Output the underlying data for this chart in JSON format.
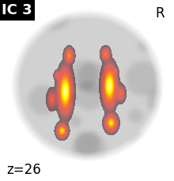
{
  "title_text": "IC 3",
  "r_label": "R",
  "z_label": "z=26",
  "figsize": [
    2.2,
    2.29
  ],
  "dpi": 100,
  "bg_color": "#ffffff",
  "title_bg": "#000000",
  "title_fg": "#ffffff",
  "z_label_color": "#000000",
  "r_label_color": "#000000"
}
